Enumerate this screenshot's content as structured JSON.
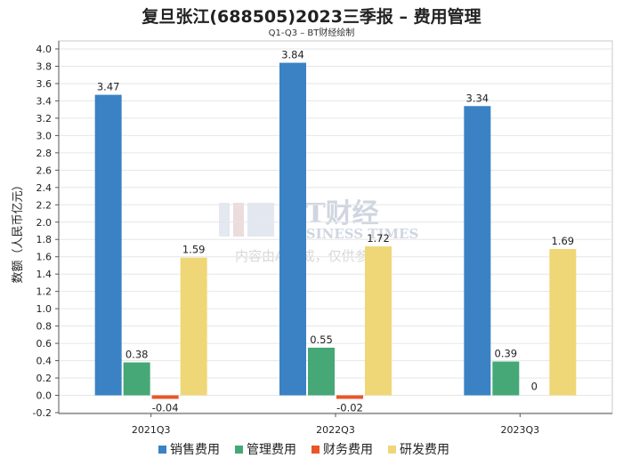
{
  "title": "复旦张江(688505)2023三季报 – 费用管理",
  "subtitle": "Q1-Q3 – BT财经绘制",
  "watermark": {
    "brand": "BT财经",
    "brand_en": "BUSINESS TIMES",
    "note": "内容由AI生成，仅供参考"
  },
  "chart_data": {
    "type": "bar",
    "title": "复旦张江(688505)2023三季报 – 费用管理",
    "subtitle": "Q1-Q3 – BT财经绘制",
    "xlabel": "",
    "ylabel": "数额（人民币亿元）",
    "ylim": [
      -0.2,
      4.0
    ],
    "yticks": [
      "-0.2",
      "0.0",
      "0.2",
      "0.4",
      "0.6",
      "0.8",
      "1.0",
      "1.2",
      "1.4",
      "1.6",
      "1.8",
      "2.0",
      "2.2",
      "2.4",
      "2.6",
      "2.8",
      "3.0",
      "3.2",
      "3.4",
      "3.6",
      "3.8",
      "4.0"
    ],
    "categories": [
      "2021Q3",
      "2022Q3",
      "2023Q3"
    ],
    "series": [
      {
        "name": "销售费用",
        "color": "#3a82c4",
        "values": [
          3.47,
          3.84,
          3.34
        ],
        "labels": [
          "3.47",
          "3.84",
          "3.34"
        ]
      },
      {
        "name": "管理费用",
        "color": "#45a876",
        "values": [
          0.38,
          0.55,
          0.39
        ],
        "labels": [
          "0.38",
          "0.55",
          "0.39"
        ]
      },
      {
        "name": "财务费用",
        "color": "#e8562a",
        "values": [
          -0.04,
          -0.02,
          0
        ],
        "labels": [
          "-0.04",
          "-0.02",
          "0"
        ]
      },
      {
        "name": "研发费用",
        "color": "#efd778",
        "values": [
          1.59,
          1.72,
          1.69
        ],
        "labels": [
          "1.59",
          "1.72",
          "1.69"
        ]
      }
    ],
    "legend_position": "bottom",
    "grid": true
  }
}
